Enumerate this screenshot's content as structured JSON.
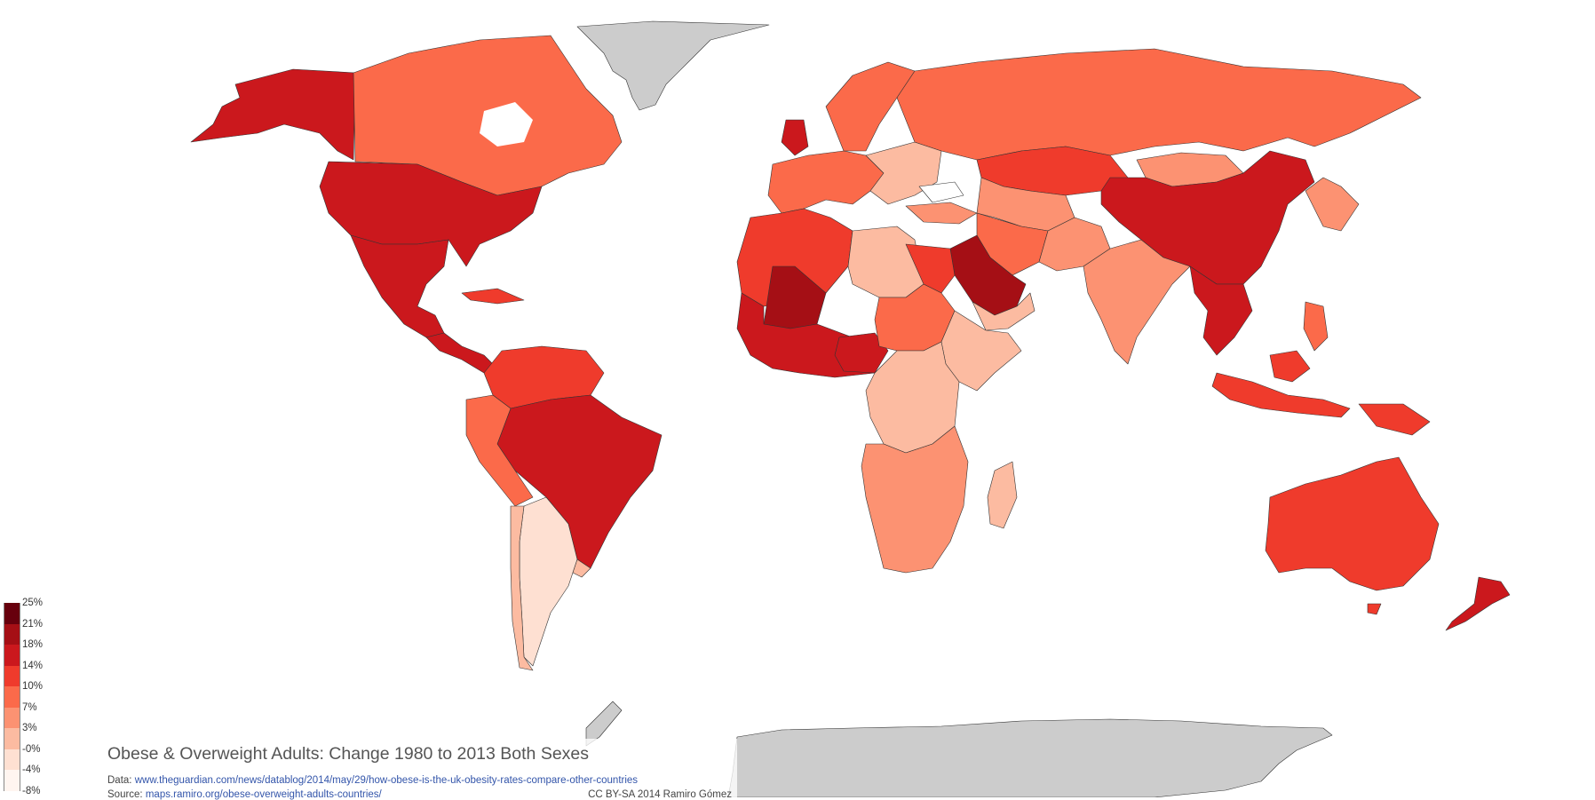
{
  "title": "Obese & Overweight Adults: Change 1980 to 2013 Both Sexes",
  "data_line": {
    "prefix": "Data:",
    "link": "www.theguardian.com/news/datablog/2014/may/29/how-obese-is-the-uk-obesity-rates-compare-other-countries"
  },
  "source_line": {
    "prefix": "Source:",
    "link": "maps.ramiro.org/obese-overweight-adults-countries/"
  },
  "credit": "CC BY-SA 2014 Ramiro Gómez",
  "legend": {
    "labels": [
      "25%",
      "21%",
      "18%",
      "14%",
      "10%",
      "7%",
      "3%",
      "-0%",
      "-4%",
      "-8%"
    ],
    "colors": [
      "#67000d",
      "#a50f15",
      "#cb181d",
      "#ef3b2c",
      "#fb6a4a",
      "#fc9272",
      "#fcbba1",
      "#fee0d2",
      "#fff5f0"
    ]
  },
  "colors": {
    "no_data": "#cccccc",
    "border": "#333333"
  }
}
